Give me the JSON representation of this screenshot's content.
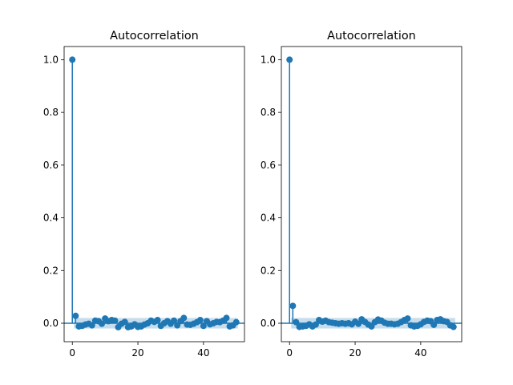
{
  "chart_data": [
    {
      "type": "stem",
      "title": "Autocorrelation",
      "xlabel": "",
      "ylabel": "",
      "xlim": [
        -2.5,
        52.5
      ],
      "ylim": [
        -0.07,
        1.05
      ],
      "xticks": [
        0,
        20,
        40
      ],
      "yticks": [
        0.0,
        0.2,
        0.4,
        0.6,
        0.8,
        1.0
      ],
      "confidence_band": 0.02,
      "lags": [
        0,
        1,
        2,
        3,
        4,
        5,
        6,
        7,
        8,
        9,
        10,
        11,
        12,
        13,
        14,
        15,
        16,
        17,
        18,
        19,
        20,
        21,
        22,
        23,
        24,
        25,
        26,
        27,
        28,
        29,
        30,
        31,
        32,
        33,
        34,
        35,
        36,
        37,
        38,
        39,
        40,
        41,
        42,
        43,
        44,
        45,
        46,
        47,
        48,
        49,
        50
      ],
      "values": [
        1.0,
        0.028,
        -0.012,
        -0.01,
        -0.005,
        -0.002,
        -0.008,
        0.01,
        0.008,
        -0.002,
        0.018,
        0.008,
        0.012,
        0.01,
        -0.015,
        -0.002,
        0.005,
        -0.015,
        -0.012,
        -0.004,
        -0.014,
        -0.012,
        -0.005,
        0.0,
        0.01,
        0.005,
        0.012,
        -0.01,
        0.0,
        0.008,
        -0.002,
        0.01,
        -0.008,
        0.008,
        0.02,
        -0.005,
        -0.006,
        -0.002,
        0.004,
        0.012,
        -0.01,
        0.008,
        -0.004,
        0.0,
        0.005,
        0.004,
        0.01,
        0.02,
        -0.012,
        -0.008,
        0.004
      ]
    },
    {
      "type": "stem",
      "title": "Autocorrelation",
      "xlabel": "",
      "ylabel": "",
      "xlim": [
        -2.5,
        52.5
      ],
      "ylim": [
        -0.07,
        1.05
      ],
      "xticks": [
        0,
        20,
        40
      ],
      "yticks": [
        0.0,
        0.2,
        0.4,
        0.6,
        0.8,
        1.0
      ],
      "confidence_band": 0.02,
      "lags": [
        0,
        1,
        2,
        3,
        4,
        5,
        6,
        7,
        8,
        9,
        10,
        11,
        12,
        13,
        14,
        15,
        16,
        17,
        18,
        19,
        20,
        21,
        22,
        23,
        24,
        25,
        26,
        27,
        28,
        29,
        30,
        31,
        32,
        33,
        34,
        35,
        36,
        37,
        38,
        39,
        40,
        41,
        42,
        43,
        44,
        45,
        46,
        47,
        48,
        49,
        50
      ],
      "values": [
        1.0,
        0.066,
        0.004,
        -0.014,
        -0.012,
        -0.01,
        -0.004,
        -0.012,
        -0.005,
        0.012,
        0.006,
        0.01,
        0.004,
        0.002,
        0.0,
        -0.002,
        0.0,
        -0.002,
        0.0,
        -0.004,
        0.006,
        -0.002,
        0.015,
        0.005,
        -0.005,
        -0.012,
        0.004,
        0.014,
        0.01,
        0.002,
        -0.002,
        -0.002,
        -0.004,
        -0.002,
        0.004,
        0.012,
        0.018,
        -0.008,
        -0.012,
        -0.01,
        -0.004,
        0.005,
        0.01,
        0.008,
        -0.006,
        0.012,
        0.015,
        0.008,
        0.005,
        -0.008,
        -0.014
      ]
    }
  ],
  "style": {
    "series_color": "#1f77b4",
    "band_color": "#1f77b4",
    "axis_color": "#000000",
    "background": "#ffffff"
  }
}
